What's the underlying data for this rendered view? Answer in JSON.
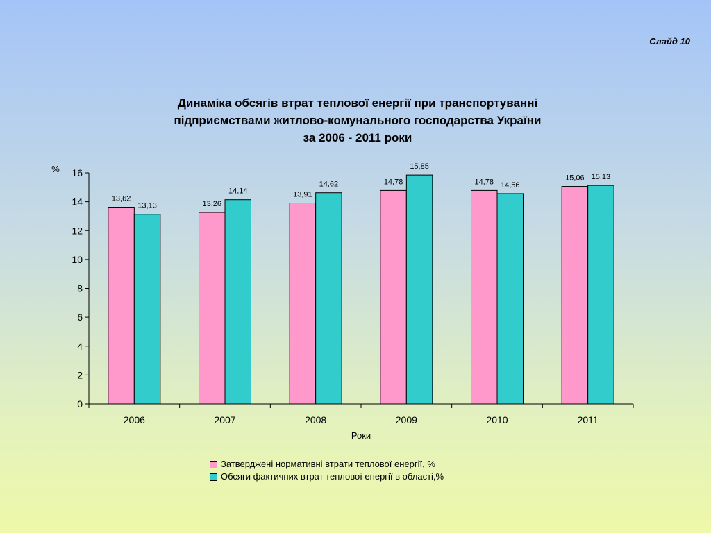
{
  "slide_label": "Слайд 10",
  "title_lines": [
    "Динаміка обсягів втрат теплової енергії при транспортуванні",
    "підприємствами житлово-комунального господарства України",
    "за 2006 - 2011 роки"
  ],
  "colors": {
    "series_1": "#ff99cc",
    "series_2": "#33cccc"
  },
  "chart_data": {
    "type": "bar",
    "categories": [
      "2006",
      "2007",
      "2008",
      "2009",
      "2010",
      "2011"
    ],
    "series": [
      {
        "name": "Затверджені нормативні втрати теплової енергії, %",
        "values": [
          13.62,
          13.26,
          13.91,
          14.78,
          14.78,
          15.06
        ],
        "labels": [
          "13,62",
          "13,26",
          "13,91",
          "14,78",
          "14,78",
          "15,06"
        ]
      },
      {
        "name": "Обсяги фактичних втрат теплової енергії  в  області,%",
        "values": [
          13.13,
          14.14,
          14.62,
          15.85,
          14.56,
          15.13
        ],
        "labels": [
          "13,13",
          "14,14",
          "14,62",
          "15,85",
          "14,56",
          "15,13"
        ]
      }
    ],
    "xlabel": "Роки",
    "ylabel": "%",
    "ylim": [
      0,
      16
    ],
    "yticks": [
      "0",
      "2",
      "4",
      "6",
      "8",
      "10",
      "12",
      "14",
      "16"
    ],
    "grid": false,
    "legend_position": "bottom"
  }
}
